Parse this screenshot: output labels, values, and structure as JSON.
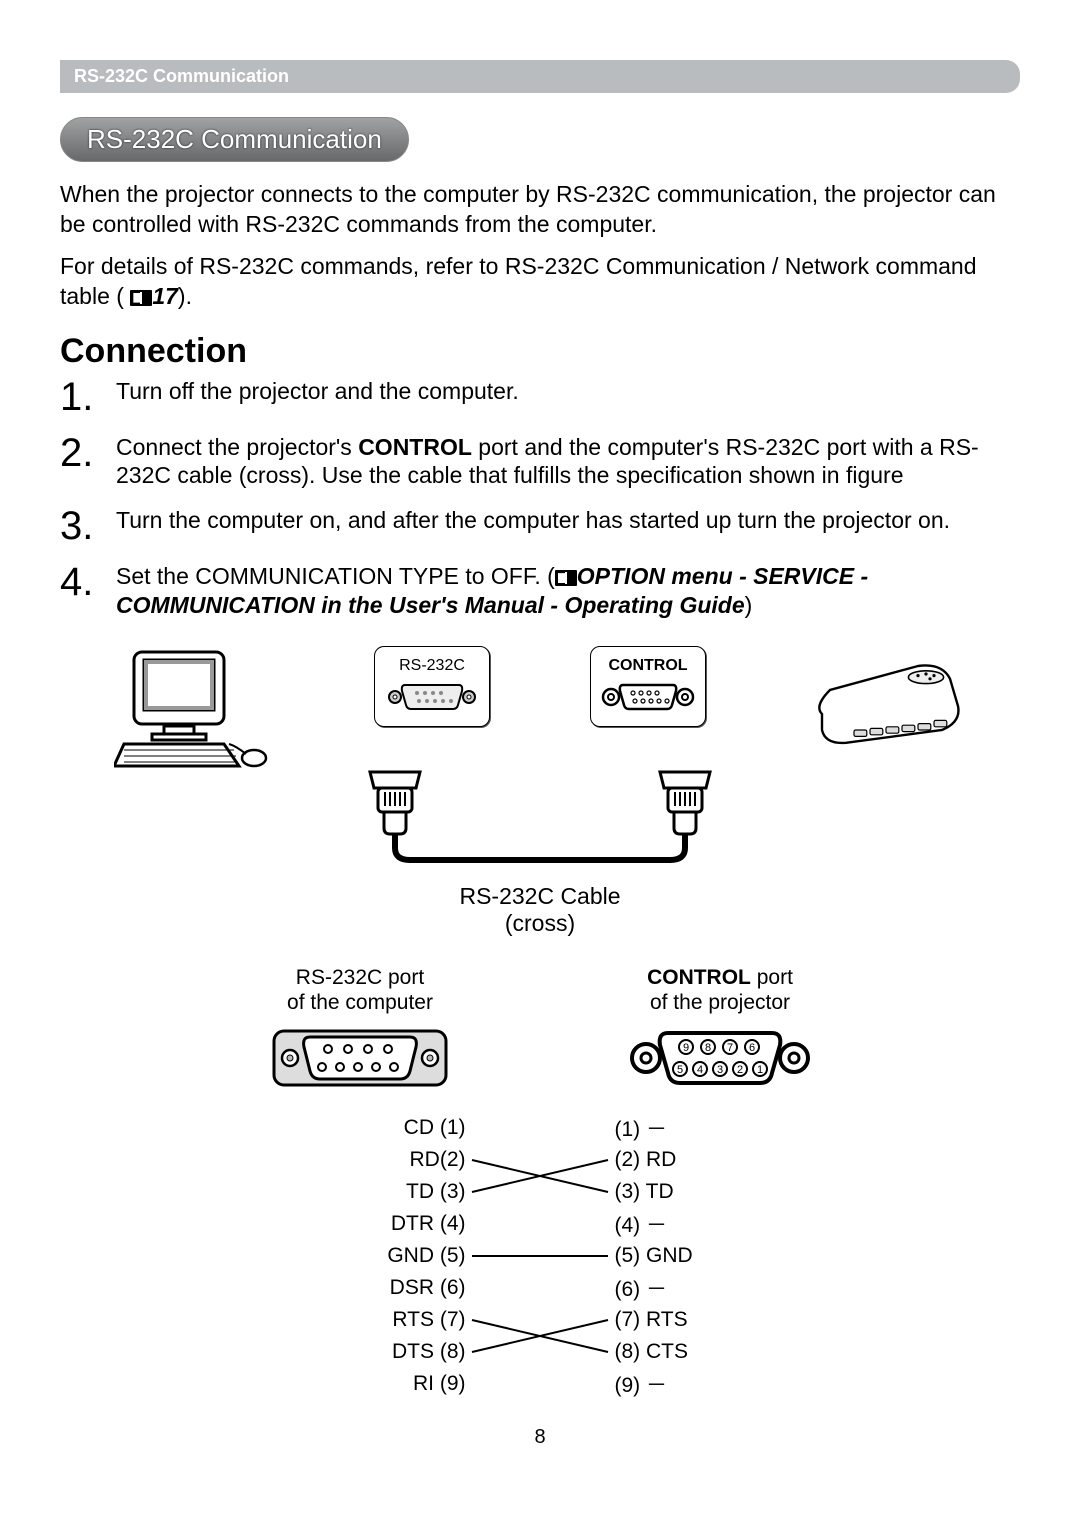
{
  "header_bar": "RS-232C Communication",
  "pill": "RS-232C Communication",
  "intro": {
    "p1": "When the projector connects to the computer by RS-232C communication, the projector can be controlled with RS-232C commands from the computer.",
    "p2a": "For details of RS-232C commands, refer to RS-232C Communication / Network command table (",
    "ref_num": "17",
    "p2b": ")."
  },
  "h_connection": "Connection",
  "steps": {
    "s1_num": "1.",
    "s1": "Turn off the projector and the computer.",
    "s2_num": "2.",
    "s2a": "Connect the projector's ",
    "s2b": "CONTROL",
    "s2c": " port and the computer's RS-232C port with a RS-232C cable (cross). Use the cable that fulfills the specification shown in figure",
    "s3_num": "3.",
    "s3": "Turn the computer on, and after the computer has started up turn the projector on.",
    "s4_num": "4.",
    "s4a": "Set the COMMUNICATION TYPE to OFF. (",
    "s4b": "OPTION menu - SERVICE - COMMUNICATION in the User's Manual - Operating Guide",
    "s4c": ")"
  },
  "figure": {
    "label_rs232c": "RS-232C",
    "label_control": "CONTROL",
    "cable_line1": "RS-232C Cable",
    "cable_line2": "(cross)",
    "pc_title_line1": "RS-232C port",
    "pc_title_line2": "of the computer",
    "proj_title_line1_a": "CONTROL",
    "proj_title_line1_b": " port",
    "proj_title_line2": "of the projector",
    "pins_left": [
      "CD (1)",
      "RD(2)",
      "TD (3)",
      "DTR (4)",
      "GND (5)",
      "DSR (6)",
      "RTS (7)",
      "DTS (8)",
      "RI (9)"
    ],
    "pins_right": [
      "(1) －",
      "(2) RD",
      "(3) TD",
      "(4) －",
      "(5) GND",
      "(6) －",
      "(7) RTS",
      "(8) CTS",
      "(9) －"
    ],
    "line_map": [
      {
        "l": 0,
        "r": 0,
        "draw": false
      },
      {
        "l": 1,
        "r": 2,
        "draw": true
      },
      {
        "l": 2,
        "r": 1,
        "draw": true
      },
      {
        "l": 3,
        "r": 3,
        "draw": false
      },
      {
        "l": 4,
        "r": 4,
        "draw": true
      },
      {
        "l": 5,
        "r": 5,
        "draw": false
      },
      {
        "l": 6,
        "r": 7,
        "draw": true
      },
      {
        "l": 7,
        "r": 6,
        "draw": true
      },
      {
        "l": 8,
        "r": 8,
        "draw": false
      }
    ]
  },
  "page_number": "8"
}
